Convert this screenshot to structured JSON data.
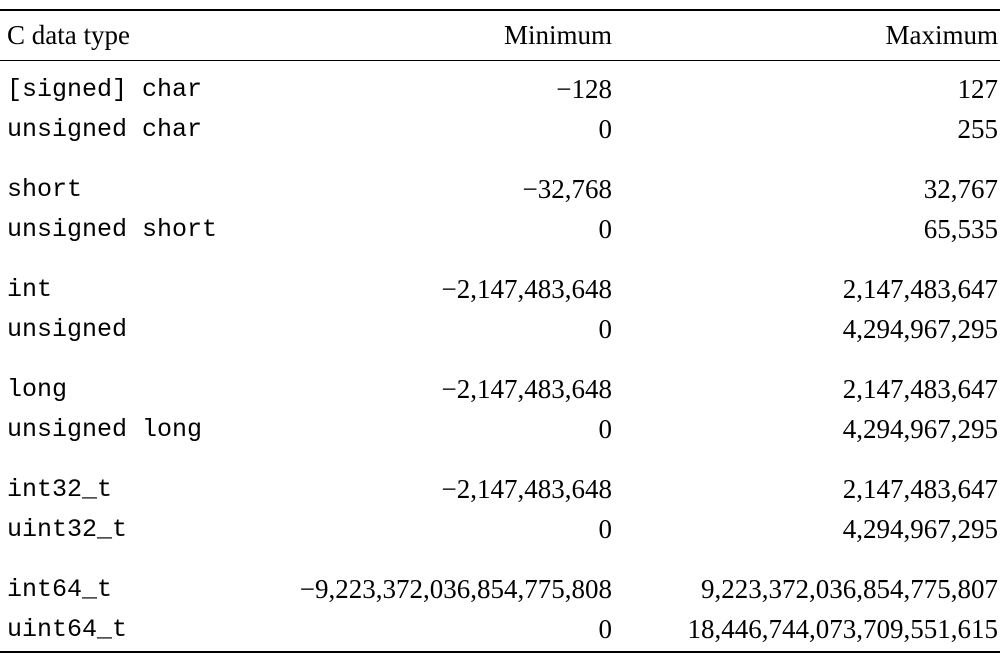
{
  "table": {
    "headers": {
      "type": "C data type",
      "min": "Minimum",
      "max": "Maximum"
    },
    "groups": [
      [
        {
          "type": "[signed] char",
          "min": "−128",
          "max": "127"
        },
        {
          "type": "unsigned char",
          "min": "0",
          "max": "255"
        }
      ],
      [
        {
          "type": "short",
          "min": "−32,768",
          "max": "32,767"
        },
        {
          "type": "unsigned short",
          "min": "0",
          "max": "65,535"
        }
      ],
      [
        {
          "type": "int",
          "min": "−2,147,483,648",
          "max": "2,147,483,647"
        },
        {
          "type": "unsigned",
          "min": "0",
          "max": "4,294,967,295"
        }
      ],
      [
        {
          "type": "long",
          "min": "−2,147,483,648",
          "max": "2,147,483,647"
        },
        {
          "type": "unsigned long",
          "min": "0",
          "max": "4,294,967,295"
        }
      ],
      [
        {
          "type": "int32_t",
          "min": "−2,147,483,648",
          "max": "2,147,483,647"
        },
        {
          "type": "uint32_t",
          "min": "0",
          "max": "4,294,967,295"
        }
      ],
      [
        {
          "type": "int64_t",
          "min": "−9,223,372,036,854,775,808",
          "max": "9,223,372,036,854,775,807"
        },
        {
          "type": "uint64_t",
          "min": "0",
          "max": "18,446,744,073,709,551,615"
        }
      ]
    ]
  }
}
